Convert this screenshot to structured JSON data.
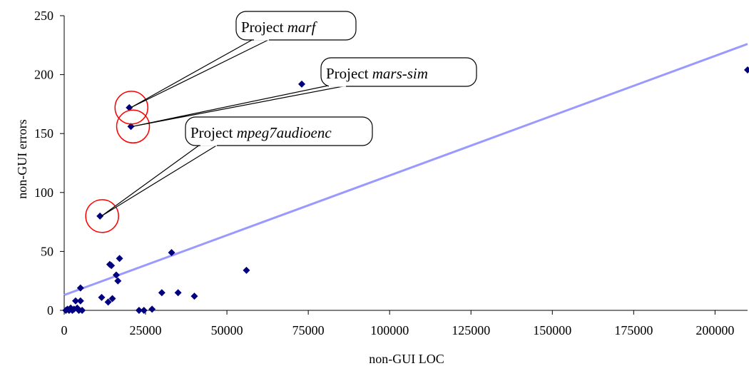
{
  "chart_data": {
    "type": "scatter",
    "xlabel": "non-GUI LOC",
    "ylabel": "non-GUI errors",
    "xlim": [
      0,
      210000
    ],
    "ylim": [
      0,
      250
    ],
    "x_ticks": [
      0,
      25000,
      50000,
      75000,
      100000,
      125000,
      150000,
      175000,
      200000
    ],
    "y_ticks": [
      0,
      50,
      100,
      150,
      200,
      250
    ],
    "grid": false,
    "legend": "none",
    "colors": {
      "points": "#000080",
      "trendline": "#9999ff",
      "highlight": "#ff0000",
      "callout_border": "#000000"
    },
    "series": [
      {
        "points": [
          [
            500,
            0
          ],
          [
            1000,
            1
          ],
          [
            1500,
            0
          ],
          [
            2000,
            2
          ],
          [
            2500,
            0
          ],
          [
            3000,
            1
          ],
          [
            3500,
            8
          ],
          [
            4000,
            2
          ],
          [
            4500,
            0
          ],
          [
            5000,
            19
          ],
          [
            5000,
            8
          ],
          [
            5500,
            0
          ],
          [
            11000,
            80
          ],
          [
            11500,
            11
          ],
          [
            13500,
            7
          ],
          [
            14000,
            39
          ],
          [
            14500,
            38
          ],
          [
            14800,
            10
          ],
          [
            16000,
            30
          ],
          [
            16500,
            25
          ],
          [
            17000,
            44
          ],
          [
            20000,
            172
          ],
          [
            20500,
            156
          ],
          [
            23000,
            0
          ],
          [
            24500,
            0
          ],
          [
            27000,
            1
          ],
          [
            30000,
            15
          ],
          [
            33000,
            49
          ],
          [
            35000,
            15
          ],
          [
            40000,
            12
          ],
          [
            56000,
            34
          ],
          [
            73000,
            192
          ],
          [
            210000,
            204
          ]
        ]
      }
    ],
    "trendline": {
      "x": [
        0,
        210000
      ],
      "y": [
        13,
        226
      ]
    },
    "highlighted_points": [
      {
        "x": 20000,
        "y": 172
      },
      {
        "x": 20500,
        "y": 156
      },
      {
        "x": 11000,
        "y": 80
      }
    ],
    "annotations": [
      {
        "prefix": "Project ",
        "name": "marf",
        "target_x": 20000,
        "target_y": 172
      },
      {
        "prefix": "Project ",
        "name": "mars-sim",
        "target_x": 20500,
        "target_y": 156
      },
      {
        "prefix": "Project ",
        "name": "mpeg7audioenc",
        "target_x": 11000,
        "target_y": 80
      }
    ]
  }
}
